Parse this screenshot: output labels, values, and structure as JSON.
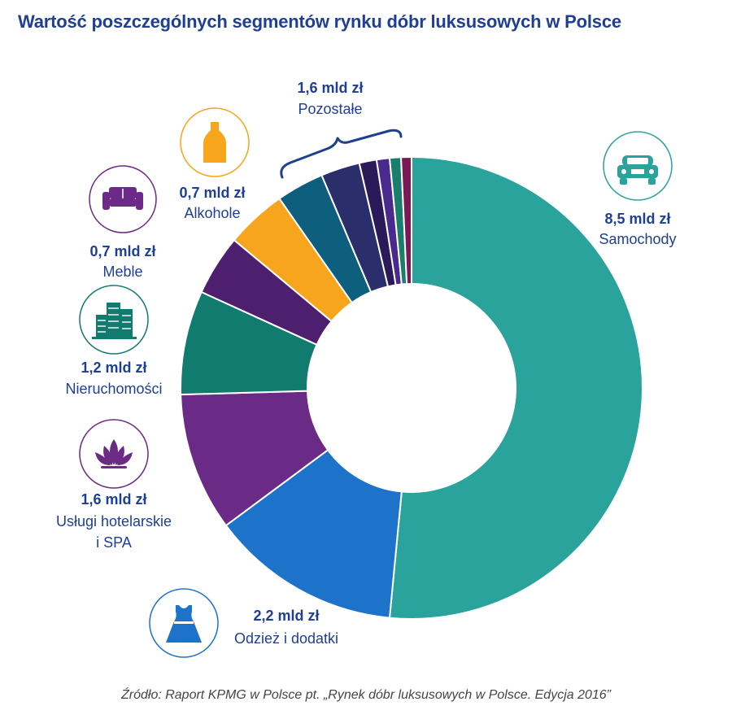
{
  "title": "Wartość poszczególnych segmentów rynku dóbr luksusowych w Polsce",
  "source": "Źródło: Raport KPMG w Polsce pt. „Rynek dóbr luksusowych w Polsce. Edycja 2016”",
  "icons": {
    "samochody": "car-icon",
    "odziez": "dress-icon",
    "uslugi": "lotus-icon",
    "nieruchomosci": "buildings-icon",
    "meble": "sofa-icon",
    "alkohole": "bottle-icon"
  },
  "chart_data": {
    "type": "pie",
    "variant": "donut",
    "unit": "mld zł",
    "start_angle_deg": 0,
    "direction": "clockwise",
    "slices": [
      {
        "key": "samochody",
        "name": "Samochody",
        "value_label": "8,5 mld zł",
        "value": 8.5,
        "color": "#2aa39d"
      },
      {
        "key": "odziez",
        "name": "Odzież i dodatki",
        "value_label": "2,2 mld zł",
        "value": 2.2,
        "color": "#1d72c9"
      },
      {
        "key": "uslugi",
        "name": "Usługi hotelarskie\ni SPA",
        "value_label": "1,6 mld zł",
        "value": 1.6,
        "color": "#6a2a86"
      },
      {
        "key": "nieruchomosci",
        "name": "Nieruchomości",
        "value_label": "1,2 mld zł",
        "value": 1.2,
        "color": "#127b70"
      },
      {
        "key": "meble",
        "name": "Meble",
        "value_label": "0,7 mld zł",
        "value": 0.7,
        "color": "#4d1f6e"
      },
      {
        "key": "alkohole",
        "name": "Alkohole",
        "value_label": "0,7 mld zł",
        "value": 0.7,
        "color": "#f7a51c"
      },
      {
        "key": "pozostale1",
        "value": 0.55,
        "color": "#0e5e7e"
      },
      {
        "key": "pozostale2",
        "value": 0.45,
        "color": "#2a2f6c"
      },
      {
        "key": "pozostale3",
        "value": 0.2,
        "color": "#2a1a59"
      },
      {
        "key": "pozostale4",
        "value": 0.15,
        "color": "#4a2a8e"
      },
      {
        "key": "pozostale5",
        "value": 0.13,
        "color": "#1a7e6c"
      },
      {
        "key": "pozostale6",
        "value": 0.12,
        "color": "#7a1a55"
      }
    ],
    "group_label": {
      "name": "Pozostałe",
      "value_label": "1,6 mld zł",
      "value": 1.6
    }
  }
}
